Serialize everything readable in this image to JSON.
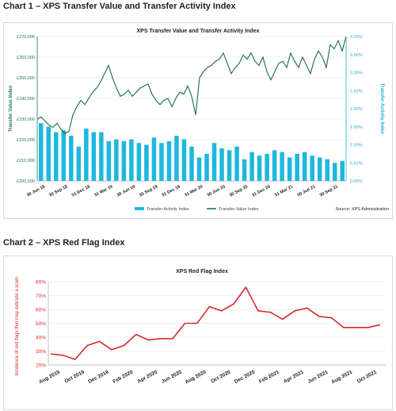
{
  "chart1_heading": "Chart 1 – XPS Transfer Value and Transfer Activity Index",
  "chart2_heading": "Chart 2 – XPS Red Flag Index",
  "chart_data": [
    {
      "type": "bar+line",
      "title": "XPS Transfer Value and Transfer Activity Index",
      "ylabel_left": "Transfer Value Index",
      "ylabel_right": "Transfer Activity Index",
      "y_left_ticks": [
        "£200,000",
        "£210,000",
        "£220,000",
        "£230,000",
        "£240,000",
        "£250,000",
        "£260,000",
        "£270,000"
      ],
      "ylim_left": [
        200000,
        270000
      ],
      "y_right_ticks": [
        "0.00%",
        "0.50%",
        "1.00%",
        "1.50%",
        "2.00%",
        "2.50%",
        "3.00%",
        "3.50%",
        "4.00%"
      ],
      "ylim_right": [
        0,
        4
      ],
      "x_ticks": [
        "30 Jun 18",
        "30 Sep 18",
        "31 Dec 18",
        "31 Mar 19",
        "30 Jun 19",
        "30 Sep 19",
        "31 Dec 19",
        "31 Mar 20",
        "30 Jun 20",
        "30 Sep 20",
        "31 Dec 20",
        "31 Mar 21",
        "30 Jun 21",
        "30 Sep 21"
      ],
      "legend": [
        "Transfer Activity Index",
        "Transfer Value Index"
      ],
      "legend_position": "bottom",
      "source": "Source: XPS Administration",
      "colors": {
        "bars": "#1fb7dd",
        "line": "#1a6b48"
      },
      "bars": {
        "name": "Transfer Activity Index",
        "values": [
          1.6,
          1.5,
          1.35,
          1.4,
          1.25,
          0.95,
          1.45,
          1.35,
          1.35,
          1.1,
          1.15,
          1.1,
          1.15,
          1.05,
          1.0,
          1.2,
          1.05,
          1.1,
          1.25,
          1.15,
          0.95,
          0.65,
          0.75,
          1.05,
          0.9,
          0.85,
          0.95,
          0.6,
          0.8,
          0.7,
          0.75,
          0.85,
          0.8,
          0.65,
          0.75,
          0.8,
          0.7,
          0.65,
          0.6,
          0.5,
          0.55
        ]
      },
      "line": {
        "name": "Transfer Value Index",
        "values": [
          230000,
          231000,
          229000,
          227000,
          226000,
          228000,
          225000,
          223000,
          224000,
          232000,
          236000,
          239000,
          237000,
          240000,
          243000,
          245000,
          248000,
          252000,
          256000,
          250000,
          245000,
          241000,
          242000,
          244000,
          241000,
          243000,
          245000,
          246000,
          247000,
          242000,
          239000,
          237000,
          239000,
          240000,
          236000,
          240000,
          243000,
          242000,
          246000,
          241000,
          232000,
          250000,
          253000,
          255000,
          256000,
          258000,
          259000,
          262000,
          257000,
          252000,
          255000,
          257000,
          261000,
          259000,
          262000,
          258000,
          256000,
          260000,
          253000,
          249000,
          253000,
          257000,
          258000,
          255000,
          262000,
          258000,
          255000,
          260000,
          256000,
          252000,
          259000,
          263000,
          260000,
          255000,
          266000,
          264000,
          268000,
          263000,
          270000
        ]
      }
    },
    {
      "type": "line",
      "title": "XPS Red Flag Index",
      "ylabel": "Incidence of red flags that may indicate a scam",
      "y_ticks": [
        "20%",
        "30%",
        "40%",
        "50%",
        "60%",
        "70%",
        "80%"
      ],
      "ylim": [
        20,
        80
      ],
      "x_ticks": [
        "Aug 2019",
        "Oct 2019",
        "Dec 2019",
        "Feb 2020",
        "Apr 2020",
        "Jun 2020",
        "Aug 2020",
        "Oct 2020",
        "Dec 2020",
        "Feb 2021",
        "Apr 2021",
        "Jun 2021",
        "Aug 2021",
        "Oct 2021"
      ],
      "color": "#d8282f",
      "series": [
        {
          "values": [
            28,
            27,
            24,
            34,
            37,
            31,
            34,
            42,
            38,
            39,
            39,
            50,
            50,
            62,
            59,
            64,
            76,
            59,
            58,
            53,
            59,
            61,
            55,
            54,
            47,
            47,
            47,
            49
          ]
        }
      ]
    }
  ]
}
